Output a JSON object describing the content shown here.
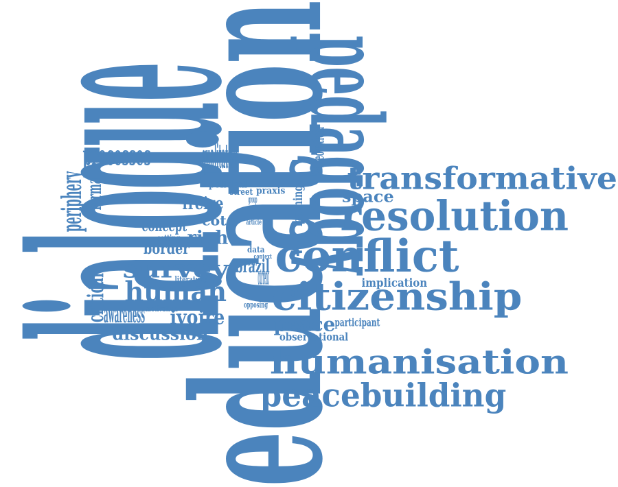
{
  "cloud": {
    "color": "#4b84bd",
    "words": [
      {
        "id": "dialogue",
        "text": "dialogue",
        "rotate": -90
      },
      {
        "id": "education",
        "text": "education",
        "rotate": -90
      },
      {
        "id": "pedagogy",
        "text": "pedagogy",
        "rotate": 90
      },
      {
        "id": "transformative",
        "text": "transformative",
        "rotate": 0
      },
      {
        "id": "resolution",
        "text": "resolution",
        "rotate": 0
      },
      {
        "id": "conflict",
        "text": "conflict",
        "rotate": 0
      },
      {
        "id": "citizenship",
        "text": "citizenship",
        "rotate": 0
      },
      {
        "id": "humanisation",
        "text": "humanisation",
        "rotate": 0
      },
      {
        "id": "peacebuilding",
        "text": "peacebuilding",
        "rotate": 0
      },
      {
        "id": "survey",
        "text": "survey",
        "rotate": 0
      },
      {
        "id": "human",
        "text": "human",
        "rotate": 0
      },
      {
        "id": "discussion",
        "text": "discussion",
        "rotate": 0
      },
      {
        "id": "ivoire",
        "text": "ivoire",
        "rotate": 0
      },
      {
        "id": "peace",
        "text": "peace",
        "rotate": 0
      },
      {
        "id": "border",
        "text": "border",
        "rotate": 0
      },
      {
        "id": "right",
        "text": "right",
        "rotate": 0
      },
      {
        "id": "space",
        "text": "space",
        "rotate": 0
      },
      {
        "id": "formal",
        "text": "formal",
        "rotate": -90
      },
      {
        "id": "processes",
        "text": "processes",
        "rotate": 0
      },
      {
        "id": "periphery",
        "text": "periphery",
        "rotate": -90
      },
      {
        "id": "freire",
        "text": "freire",
        "rotate": 0
      },
      {
        "id": "critical",
        "text": "critical",
        "rotate": -90
      },
      {
        "id": "concept",
        "text": "concept",
        "rotate": 0
      },
      {
        "id": "cote",
        "text": "côte",
        "rotate": 0
      },
      {
        "id": "political",
        "text": "political",
        "rotate": 0
      },
      {
        "id": "street",
        "text": "street",
        "rotate": 0
      },
      {
        "id": "praxis",
        "text": "praxis",
        "rotate": 0
      },
      {
        "id": "implication",
        "text": "implication",
        "rotate": 0
      },
      {
        "id": "brazil",
        "text": "brazil",
        "rotate": 0
      },
      {
        "id": "observational",
        "text": "observational",
        "rotate": 0
      },
      {
        "id": "participant",
        "text": "participant",
        "rotate": 0
      },
      {
        "id": "opposing",
        "text": "opposing",
        "rotate": 0
      },
      {
        "id": "data",
        "text": "data",
        "rotate": 0
      },
      {
        "id": "context",
        "text": "context",
        "rotate": 0
      },
      {
        "id": "learning",
        "text": "learning",
        "rotate": -90
      },
      {
        "id": "theoretical",
        "text": "theoretical",
        "rotate": -90
      },
      {
        "id": "qualitative",
        "text": "qualitative",
        "rotate": 0
      },
      {
        "id": "literature",
        "text": "literature",
        "rotate": 0
      },
      {
        "id": "motivation",
        "text": "motivation",
        "rotate": 0
      },
      {
        "id": "awareness",
        "text": "awareness",
        "rotate": 0
      },
      {
        "id": "setting",
        "text": "setting",
        "rotate": 0
      },
      {
        "id": "article",
        "text": "article",
        "rotate": 0
      },
      {
        "id": "current",
        "text": "current",
        "rotate": 0
      },
      {
        "id": "study",
        "text": "study",
        "rotate": 0
      },
      {
        "id": "group",
        "text": "group",
        "rotate": 0
      }
    ]
  }
}
